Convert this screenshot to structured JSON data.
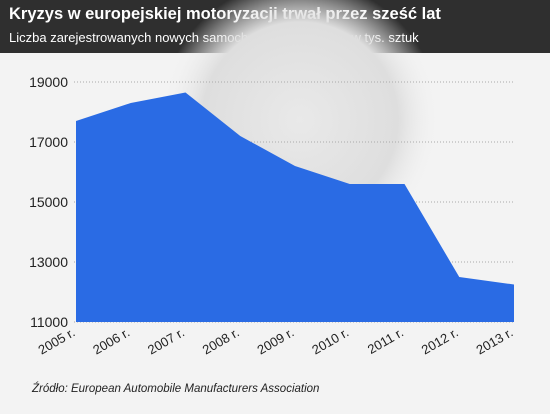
{
  "header": {
    "title": "Kryzys w europejskiej motoryzacji trwał przez sześć lat",
    "subtitle": "Liczba zarejestrowanych nowych samochodów osobowych w tys. sztuk"
  },
  "source": "Źródło: European Automobile Manufacturers Association",
  "colors": {
    "header_bg": "#2f2f2f",
    "area_fill": "#2a6be4",
    "gridline": "#aaaaaa",
    "background": "#f3f3f3"
  },
  "chart_data": {
    "type": "area",
    "title": "Kryzys w europejskiej motoryzacji trwał przez sześć lat",
    "subtitle": "Liczba zarejestrowanych nowych samochodów osobowych w tys. sztuk",
    "xlabel": "",
    "ylabel": "",
    "categories": [
      "2005 r.",
      "2006 r.",
      "2007 r.",
      "2008 r.",
      "2009 r.",
      "2010 r.",
      "2011 r.",
      "2012 r.",
      "2013 r."
    ],
    "values": [
      17700,
      18300,
      18650,
      17200,
      16200,
      15600,
      15600,
      12500,
      12250
    ],
    "ylim": [
      11000,
      19000
    ],
    "yticks": [
      11000,
      13000,
      15000,
      17000,
      19000
    ],
    "grid": "horizontal dotted",
    "legend": "none"
  }
}
